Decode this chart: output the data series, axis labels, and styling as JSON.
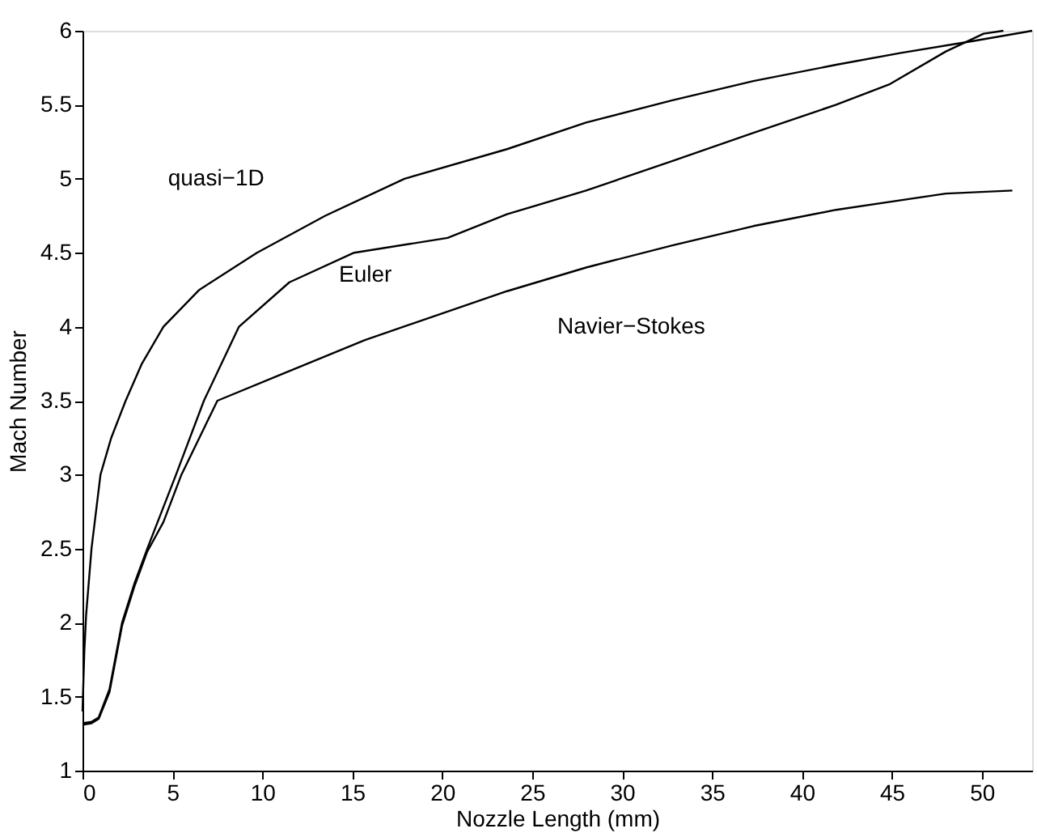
{
  "chart_data": {
    "type": "line",
    "xlabel": "Nozzle Length (mm)",
    "ylabel": "Mach Number",
    "xlim": [
      0,
      52.8
    ],
    "ylim": [
      1,
      6
    ],
    "xticks": [
      0,
      5,
      10,
      15,
      20,
      25,
      30,
      35,
      40,
      45,
      50
    ],
    "yticks": [
      1,
      1.5,
      2,
      2.5,
      3,
      3.5,
      4,
      4.5,
      5,
      5.5,
      6
    ],
    "grid": false,
    "legend": false,
    "line_style": "solid",
    "marker": "none",
    "series": [
      {
        "name": "quasi−1D",
        "color": "#000000",
        "x": [
          0,
          0.1,
          0.2,
          0.5,
          1.0,
          1.6,
          2.4,
          3.3,
          4.5,
          6.5,
          9.7,
          13.5,
          17.9,
          23.6,
          28,
          32.8,
          37.3,
          41.9,
          45.5,
          49.5,
          52.8
        ],
        "values": [
          1.4,
          1.8,
          2.05,
          2.5,
          3.0,
          3.25,
          3.5,
          3.75,
          4.0,
          4.25,
          4.5,
          4.75,
          5.0,
          5.2,
          5.38,
          5.53,
          5.66,
          5.77,
          5.85,
          5.93,
          6.0
        ]
      },
      {
        "name": "Euler",
        "color": "#000000",
        "x": [
          0,
          0.5,
          0.9,
          1.5,
          2.2,
          2.9,
          3.6,
          4.4,
          5.2,
          6.75,
          8.7,
          11.5,
          15.1,
          20.3,
          23.6,
          28,
          32.8,
          37.3,
          41.9,
          44.9,
          48,
          50.1,
          51.2
        ],
        "values": [
          1.32,
          1.33,
          1.36,
          1.55,
          2.0,
          2.27,
          2.5,
          2.75,
          3.0,
          3.5,
          4.0,
          4.3,
          4.5,
          4.6,
          4.76,
          4.92,
          5.12,
          5.31,
          5.5,
          5.64,
          5.86,
          5.98,
          6.0
        ]
      },
      {
        "name": "Navier−Stokes",
        "color": "#000000",
        "x": [
          0,
          0.5,
          0.9,
          1.5,
          2.2,
          2.9,
          3.6,
          4.5,
          5.5,
          7.5,
          10.9,
          15.7,
          23.6,
          28,
          32.8,
          37.3,
          41.9,
          48,
          51.7
        ],
        "values": [
          1.31,
          1.32,
          1.35,
          1.53,
          1.98,
          2.25,
          2.48,
          2.68,
          3.0,
          3.5,
          3.67,
          3.91,
          4.24,
          4.4,
          4.55,
          4.68,
          4.79,
          4.9,
          4.92
        ]
      }
    ]
  }
}
